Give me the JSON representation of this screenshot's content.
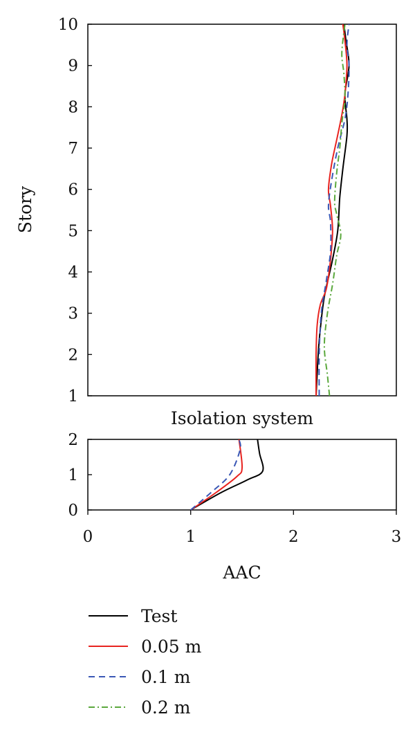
{
  "chart_data": {
    "type": "line",
    "xlabel": "AAC",
    "xlim": [
      0,
      3
    ],
    "x_ticks": [
      "0",
      "1",
      "2",
      "3"
    ],
    "grid": false,
    "legend_position": "bottom",
    "panels": [
      {
        "id": "story",
        "ylabel": "Story",
        "ylim": [
          1,
          10
        ],
        "y_ticks": [
          "1",
          "2",
          "3",
          "4",
          "5",
          "6",
          "7",
          "8",
          "9",
          "10"
        ],
        "series": [
          {
            "name": "Test",
            "color": "#000000",
            "dash": "none",
            "points": [
              [
                2.22,
                1
              ],
              [
                2.24,
                2
              ],
              [
                2.26,
                2.6
              ],
              [
                2.3,
                3.4
              ],
              [
                2.38,
                4.3
              ],
              [
                2.43,
                5
              ],
              [
                2.45,
                5.8
              ],
              [
                2.48,
                6.5
              ],
              [
                2.52,
                7.3
              ],
              [
                2.52,
                7.7
              ],
              [
                2.5,
                8.3
              ],
              [
                2.54,
                9
              ],
              [
                2.51,
                9.6
              ],
              [
                2.49,
                10
              ]
            ]
          },
          {
            "name": "0.05 m",
            "color": "#e8231f",
            "dash": "none",
            "points": [
              [
                2.22,
                1
              ],
              [
                2.22,
                2
              ],
              [
                2.23,
                2.7
              ],
              [
                2.26,
                3.2
              ],
              [
                2.32,
                3.6
              ],
              [
                2.36,
                4.3
              ],
              [
                2.38,
                5
              ],
              [
                2.36,
                5.6
              ],
              [
                2.34,
                6
              ],
              [
                2.37,
                6.6
              ],
              [
                2.42,
                7.2
              ],
              [
                2.47,
                7.8
              ],
              [
                2.5,
                8.3
              ],
              [
                2.52,
                9
              ],
              [
                2.5,
                9.6
              ],
              [
                2.48,
                10
              ]
            ]
          },
          {
            "name": "0.1 m",
            "color": "#3a57b5",
            "dash": "9,6",
            "points": [
              [
                2.25,
                1
              ],
              [
                2.25,
                2
              ],
              [
                2.27,
                3
              ],
              [
                2.32,
                3.8
              ],
              [
                2.36,
                4.5
              ],
              [
                2.36,
                5.2
              ],
              [
                2.34,
                5.6
              ],
              [
                2.37,
                6.2
              ],
              [
                2.43,
                7
              ],
              [
                2.5,
                7.7
              ],
              [
                2.53,
                8.3
              ],
              [
                2.54,
                9
              ],
              [
                2.52,
                9.5
              ],
              [
                2.54,
                10
              ]
            ]
          },
          {
            "name": "0.2 m",
            "color": "#5aa83c",
            "dash": "9,4,2,4",
            "points": [
              [
                2.35,
                1
              ],
              [
                2.33,
                1.5
              ],
              [
                2.3,
                2.2
              ],
              [
                2.33,
                3
              ],
              [
                2.38,
                3.7
              ],
              [
                2.42,
                4.4
              ],
              [
                2.46,
                4.9
              ],
              [
                2.42,
                5.4
              ],
              [
                2.4,
                5.7
              ],
              [
                2.42,
                6.4
              ],
              [
                2.45,
                7
              ],
              [
                2.47,
                7.6
              ],
              [
                2.5,
                8.2
              ],
              [
                2.49,
                8.8
              ],
              [
                2.47,
                9.3
              ],
              [
                2.5,
                10
              ]
            ]
          }
        ]
      },
      {
        "id": "isolation",
        "title": "Isolation system",
        "ylim": [
          0,
          2
        ],
        "y_ticks": [
          "0",
          "1",
          "2"
        ],
        "series": [
          {
            "name": "Test",
            "color": "#000000",
            "dash": "none",
            "points": [
              [
                1.0,
                0
              ],
              [
                1.3,
                0.5
              ],
              [
                1.55,
                0.85
              ],
              [
                1.7,
                1.1
              ],
              [
                1.67,
                1.6
              ],
              [
                1.65,
                2
              ]
            ]
          },
          {
            "name": "0.05 m",
            "color": "#e8231f",
            "dash": "none",
            "points": [
              [
                1.0,
                0
              ],
              [
                1.25,
                0.5
              ],
              [
                1.45,
                0.95
              ],
              [
                1.5,
                1.2
              ],
              [
                1.47,
                2
              ]
            ]
          },
          {
            "name": "0.1 m",
            "color": "#3a57b5",
            "dash": "9,6",
            "points": [
              [
                1.0,
                0
              ],
              [
                1.2,
                0.5
              ],
              [
                1.38,
                1.0
              ],
              [
                1.48,
                1.7
              ],
              [
                1.47,
                2
              ]
            ]
          }
        ]
      }
    ]
  }
}
